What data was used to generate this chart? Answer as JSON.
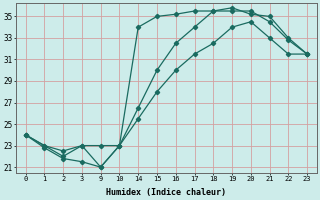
{
  "xlabel": "Humidex (Indice chaleur)",
  "bg_color": "#cdecea",
  "grid_color": "#d4a0a0",
  "line_color": "#1a6b60",
  "xlim": [
    -0.5,
    15.5
  ],
  "ylim": [
    20.5,
    36.2
  ],
  "yticks": [
    21,
    23,
    25,
    27,
    29,
    31,
    33,
    35
  ],
  "xtick_labels": [
    "0",
    "1",
    "2",
    "3",
    "9",
    "10",
    "14",
    "15",
    "16",
    "17",
    "18",
    "19",
    "20",
    "21",
    "22",
    "23"
  ],
  "series": [
    {
      "x": [
        0,
        1,
        2,
        3,
        4,
        5,
        6,
        7,
        8,
        9,
        10,
        11,
        12,
        13,
        14,
        15
      ],
      "y": [
        24.0,
        23.0,
        22.0,
        23.0,
        23.0,
        23.0,
        34.0,
        35.0,
        35.2,
        35.5,
        35.5,
        35.5,
        35.5,
        34.5,
        32.8,
        31.5
      ]
    },
    {
      "x": [
        0,
        1,
        2,
        3,
        4,
        5,
        6,
        7,
        8,
        9,
        10,
        11,
        12,
        13,
        14,
        15
      ],
      "y": [
        24.0,
        22.8,
        21.8,
        21.5,
        21.0,
        23.0,
        25.5,
        28.0,
        30.0,
        31.5,
        32.5,
        34.0,
        34.5,
        33.0,
        31.5,
        31.5
      ]
    },
    {
      "x": [
        0,
        1,
        2,
        3,
        4,
        5,
        6,
        7,
        8,
        9,
        10,
        11,
        12,
        13,
        14,
        15
      ],
      "y": [
        24.0,
        23.0,
        22.5,
        23.0,
        21.0,
        23.0,
        26.5,
        30.0,
        32.5,
        34.0,
        35.5,
        35.8,
        35.2,
        35.0,
        33.0,
        31.5
      ]
    }
  ]
}
